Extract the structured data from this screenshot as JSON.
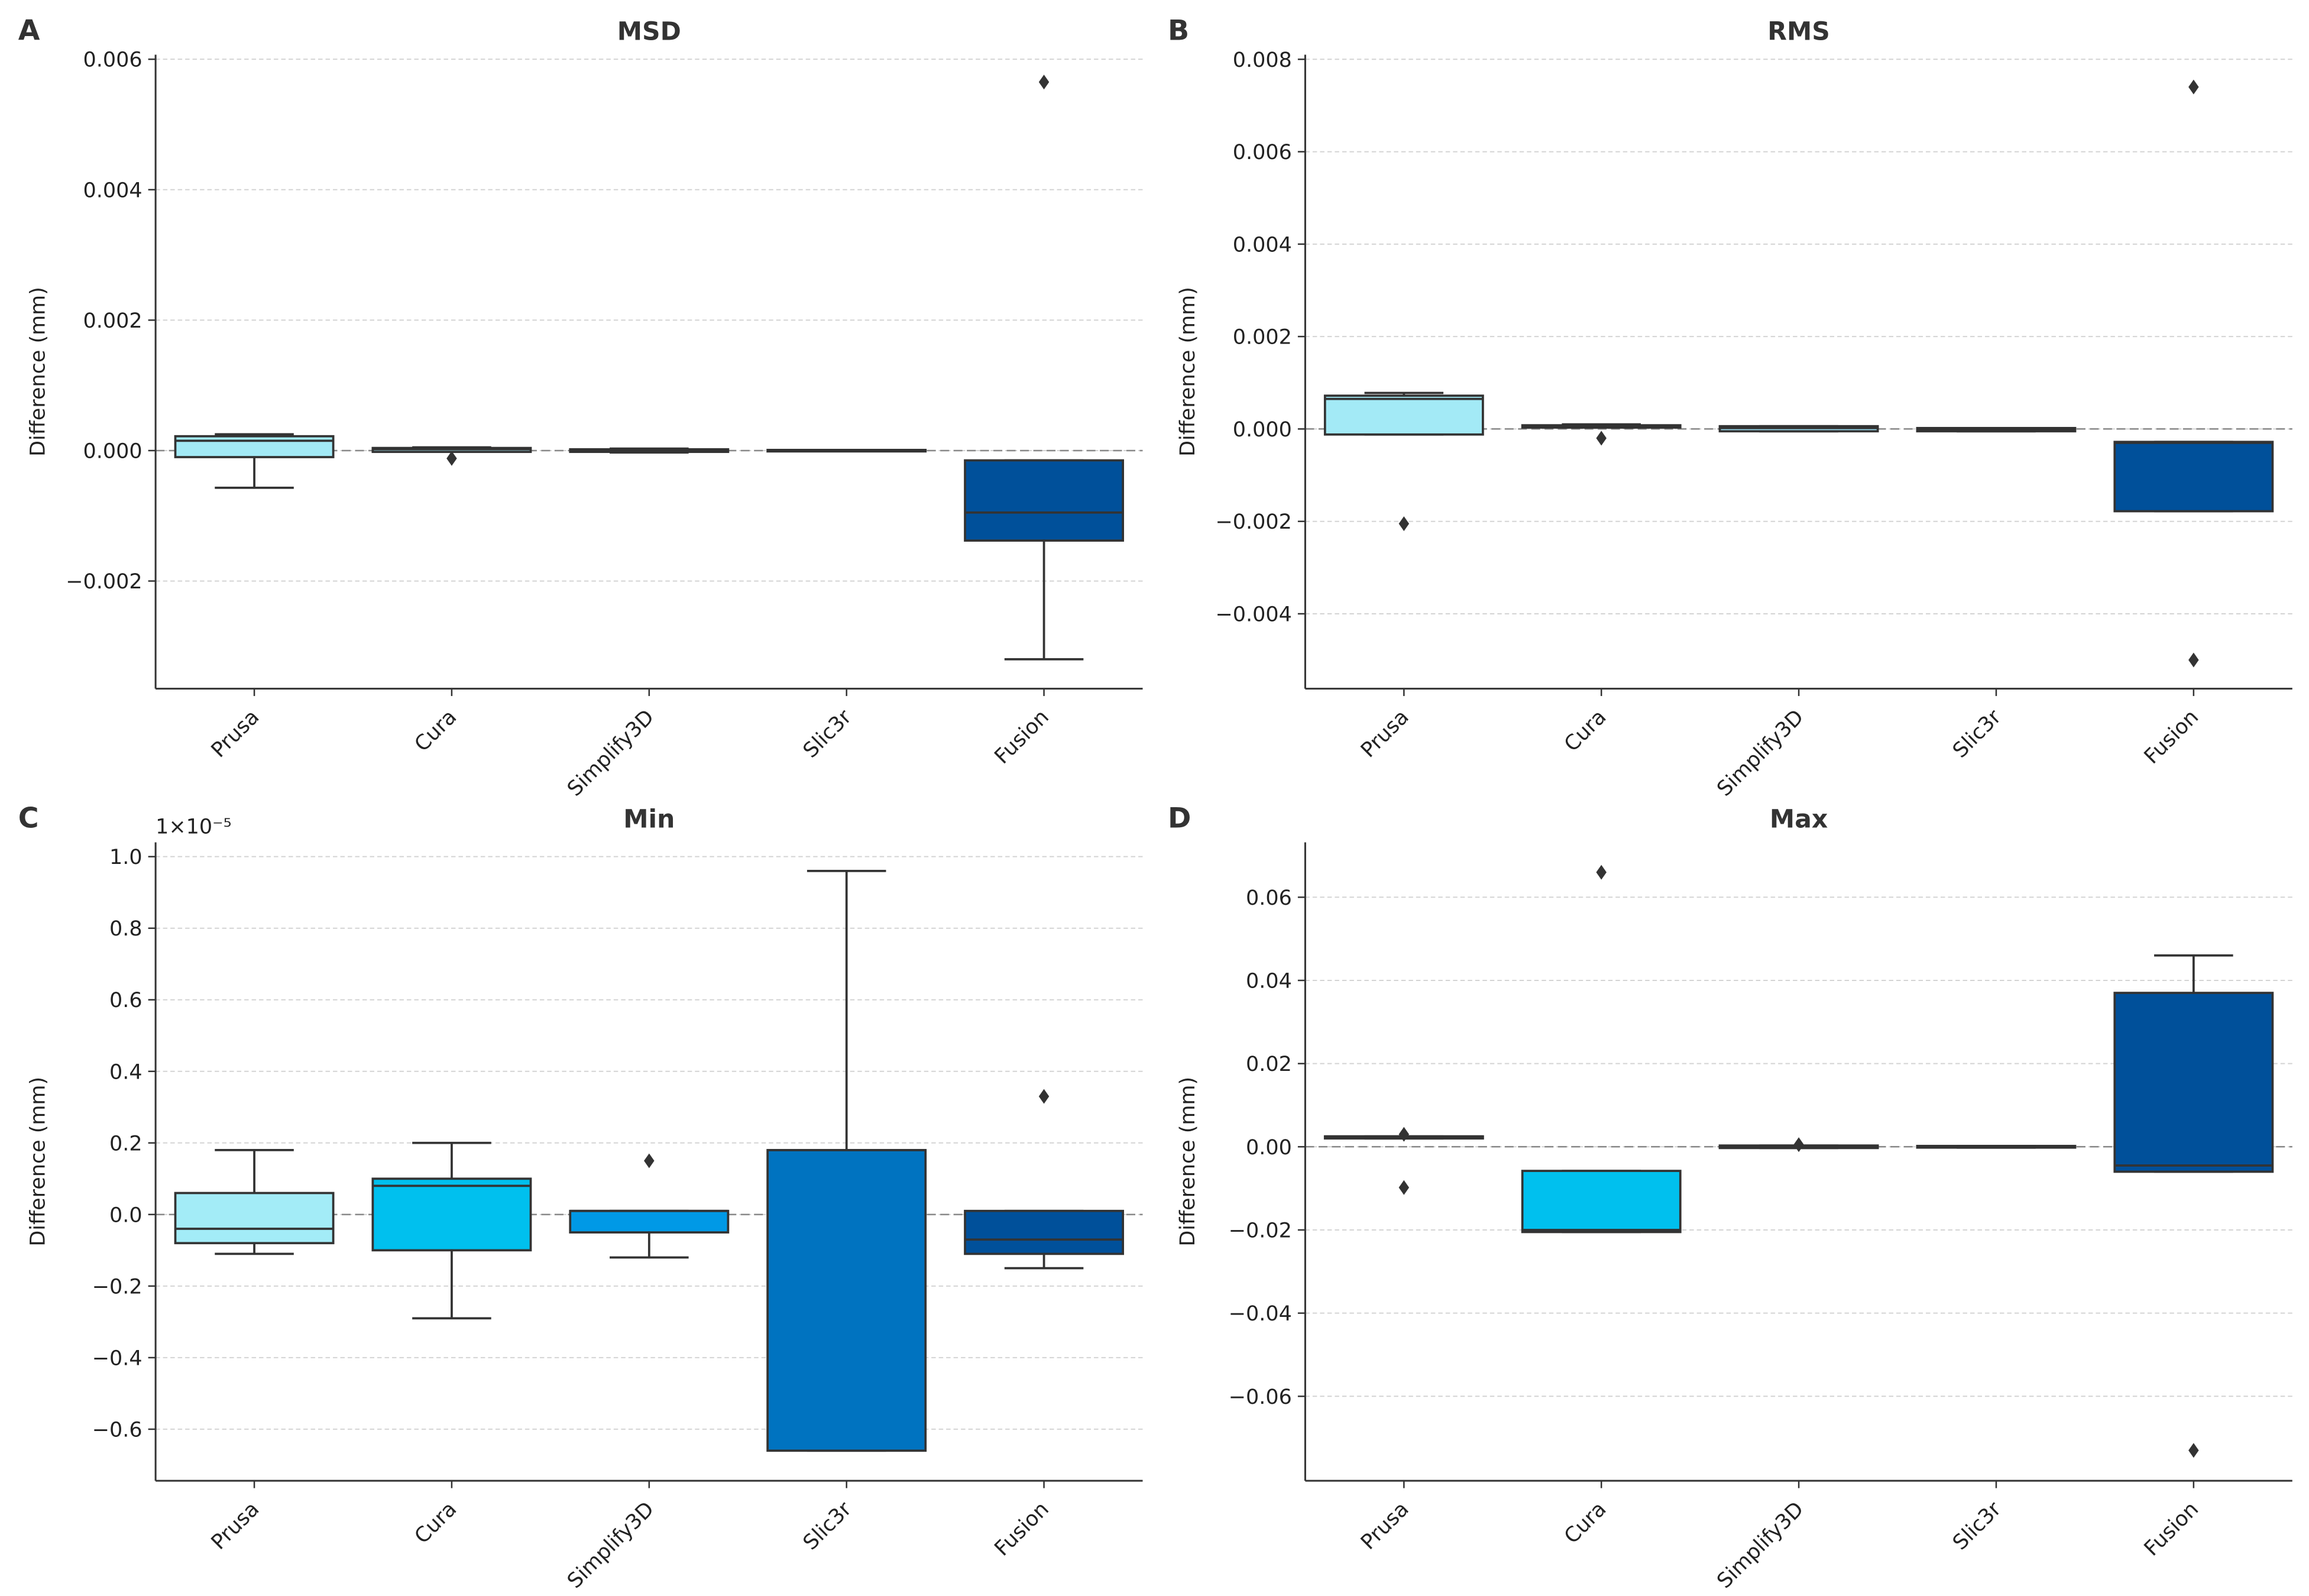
{
  "chart_data": [
    {
      "type": "box",
      "label": "A",
      "title": "MSD",
      "ylabel": "Difference (mm)",
      "categories": [
        "Prusa",
        "Cura",
        "Simplify3D",
        "Slic3r",
        "Fusion"
      ],
      "colors": [
        "#a3eaf6",
        "#a8e6f3",
        "#9adcef",
        "#8fd3ea",
        "#00509a"
      ],
      "boxes": [
        {
          "whislo": -0.00057,
          "q1": -0.0001,
          "med": 0.00015,
          "q3": 0.00022,
          "whishi": 0.00025,
          "fliers": []
        },
        {
          "whislo": -2e-05,
          "q1": -2e-05,
          "med": 2e-05,
          "q3": 4e-05,
          "whishi": 5e-05,
          "fliers": [
            -0.00012
          ]
        },
        {
          "whislo": -3e-05,
          "q1": -2e-05,
          "med": 0,
          "q3": 2e-05,
          "whishi": 3e-05,
          "fliers": []
        },
        {
          "whislo": -1e-05,
          "q1": -1e-05,
          "med": 0,
          "q3": 1e-05,
          "whishi": 1e-05,
          "fliers": []
        },
        {
          "whislo": -0.0032,
          "q1": -0.00138,
          "med": -0.00095,
          "q3": -0.00015,
          "whishi": -0.00015,
          "fliers": [
            0.00565
          ]
        }
      ],
      "ylim": [
        -0.00365,
        0.00607
      ],
      "yticks": [
        {
          "value": -0.002,
          "label": "−0.002"
        },
        {
          "value": 0,
          "label": "0.000"
        },
        0.002,
        0.004,
        0.006
      ],
      "reference_line": 0,
      "grid": true
    },
    {
      "type": "box",
      "label": "B",
      "title": "RMS",
      "ylabel": "Difference (mm)",
      "categories": [
        "Prusa",
        "Cura",
        "Simplify3D",
        "Slic3r",
        "Fusion"
      ],
      "colors": [
        "#a3eaf6",
        "#a8e6f3",
        "#9adcef",
        "#8fd3ea",
        "#00509a"
      ],
      "boxes": [
        {
          "whislo": -0.00012,
          "q1": -0.00012,
          "med": 0.00065,
          "q3": 0.00072,
          "whishi": 0.00078,
          "fliers": [
            -0.00205
          ]
        },
        {
          "whislo": 3e-05,
          "q1": 3e-05,
          "med": 5e-05,
          "q3": 8e-05,
          "whishi": 0.0001,
          "fliers": [
            -0.0002
          ]
        },
        {
          "whislo": -5e-05,
          "q1": -5e-05,
          "med": 2e-05,
          "q3": 6e-05,
          "whishi": 6e-05,
          "fliers": []
        },
        {
          "whislo": -5e-05,
          "q1": -5e-05,
          "med": -2e-05,
          "q3": 2e-05,
          "whishi": 2e-05,
          "fliers": []
        },
        {
          "whislo": -0.00178,
          "q1": -0.00178,
          "med": -0.0003,
          "q3": -0.00028,
          "whishi": -0.00028,
          "fliers": [
            0.0074,
            -0.005
          ]
        }
      ],
      "ylim": [
        -0.00562,
        0.0081
      ],
      "yticks": [
        {
          "value": -0.004,
          "label": "−0.004"
        },
        {
          "value": -0.002,
          "label": "−0.002"
        },
        {
          "value": 0,
          "label": "0.000"
        },
        0.002,
        0.004,
        0.006,
        0.008
      ],
      "reference_line": 0,
      "grid": true
    },
    {
      "type": "box",
      "label": "C",
      "title": "Min",
      "ylabel": "Difference (mm)",
      "offset_label": "1×10⁻⁵",
      "categories": [
        "Prusa",
        "Cura",
        "Simplify3D",
        "Slic3r",
        "Fusion"
      ],
      "colors": [
        "#a3ecf7",
        "#00c0ee",
        "#0099e6",
        "#0073c0",
        "#00509a"
      ],
      "boxes": [
        {
          "whislo": -0.11,
          "q1": -0.08,
          "med": -0.04,
          "q3": 0.06,
          "whishi": 0.18,
          "fliers": []
        },
        {
          "whislo": -0.29,
          "q1": -0.1,
          "med": 0.08,
          "q3": 0.1,
          "whishi": 0.2,
          "fliers": []
        },
        {
          "whislo": -0.12,
          "q1": -0.05,
          "med": 0.01,
          "q3": 0.01,
          "whishi": 0.01,
          "fliers": [
            0.15
          ]
        },
        {
          "whislo": -0.66,
          "q1": -0.66,
          "med": 0.18,
          "q3": 0.18,
          "whishi": 0.96,
          "fliers": []
        },
        {
          "whislo": -0.15,
          "q1": -0.11,
          "med": -0.07,
          "q3": 0.01,
          "whishi": 0.01,
          "fliers": [
            0.33
          ]
        }
      ],
      "ylim": [
        -0.744,
        1.04
      ],
      "yticks": [
        {
          "value": -0.6,
          "label": "−0.6"
        },
        {
          "value": -0.4,
          "label": "−0.4"
        },
        {
          "value": -0.2,
          "label": "−0.2"
        },
        {
          "value": 0,
          "label": "0.0"
        },
        0.2,
        0.4,
        0.6,
        0.8,
        {
          "value": 1,
          "label": "1.0"
        }
      ],
      "reference_line": 0,
      "grid": true
    },
    {
      "type": "box",
      "label": "D",
      "title": "Max",
      "ylabel": "Difference (mm)",
      "categories": [
        "Prusa",
        "Cura",
        "Simplify3D",
        "Slic3r",
        "Fusion"
      ],
      "colors": [
        "#a3ecf7",
        "#00c0ee",
        "#0099e6",
        "#0073c0",
        "#00509a"
      ],
      "boxes": [
        {
          "whislo": 0.002,
          "q1": 0.002,
          "med": 0.0025,
          "q3": 0.0025,
          "whishi": 0.0025,
          "fliers": [
            0.003,
            -0.0098
          ]
        },
        {
          "whislo": -0.0205,
          "q1": -0.0205,
          "med": -0.02,
          "q3": -0.0058,
          "whishi": -0.0058,
          "fliers": [
            0.066
          ]
        },
        {
          "whislo": -0.0003,
          "q1": -0.0003,
          "med": 0,
          "q3": 0.0003,
          "whishi": 0.0003,
          "fliers": [
            0.0005
          ]
        },
        {
          "whislo": -0.0002,
          "q1": -0.0002,
          "med": 0,
          "q3": 0.0002,
          "whishi": 0.0002,
          "fliers": []
        },
        {
          "whislo": -0.006,
          "q1": -0.006,
          "med": -0.0045,
          "q3": 0.037,
          "whishi": 0.046,
          "fliers": [
            -0.073
          ]
        }
      ],
      "ylim": [
        -0.0803,
        0.0732
      ],
      "yticks": [
        {
          "value": -0.06,
          "label": "−0.06"
        },
        {
          "value": -0.04,
          "label": "−0.04"
        },
        {
          "value": -0.02,
          "label": "−0.02"
        },
        {
          "value": 0,
          "label": "0.00"
        },
        0.02,
        0.04,
        0.06
      ],
      "reference_line": 0,
      "grid": true
    }
  ]
}
